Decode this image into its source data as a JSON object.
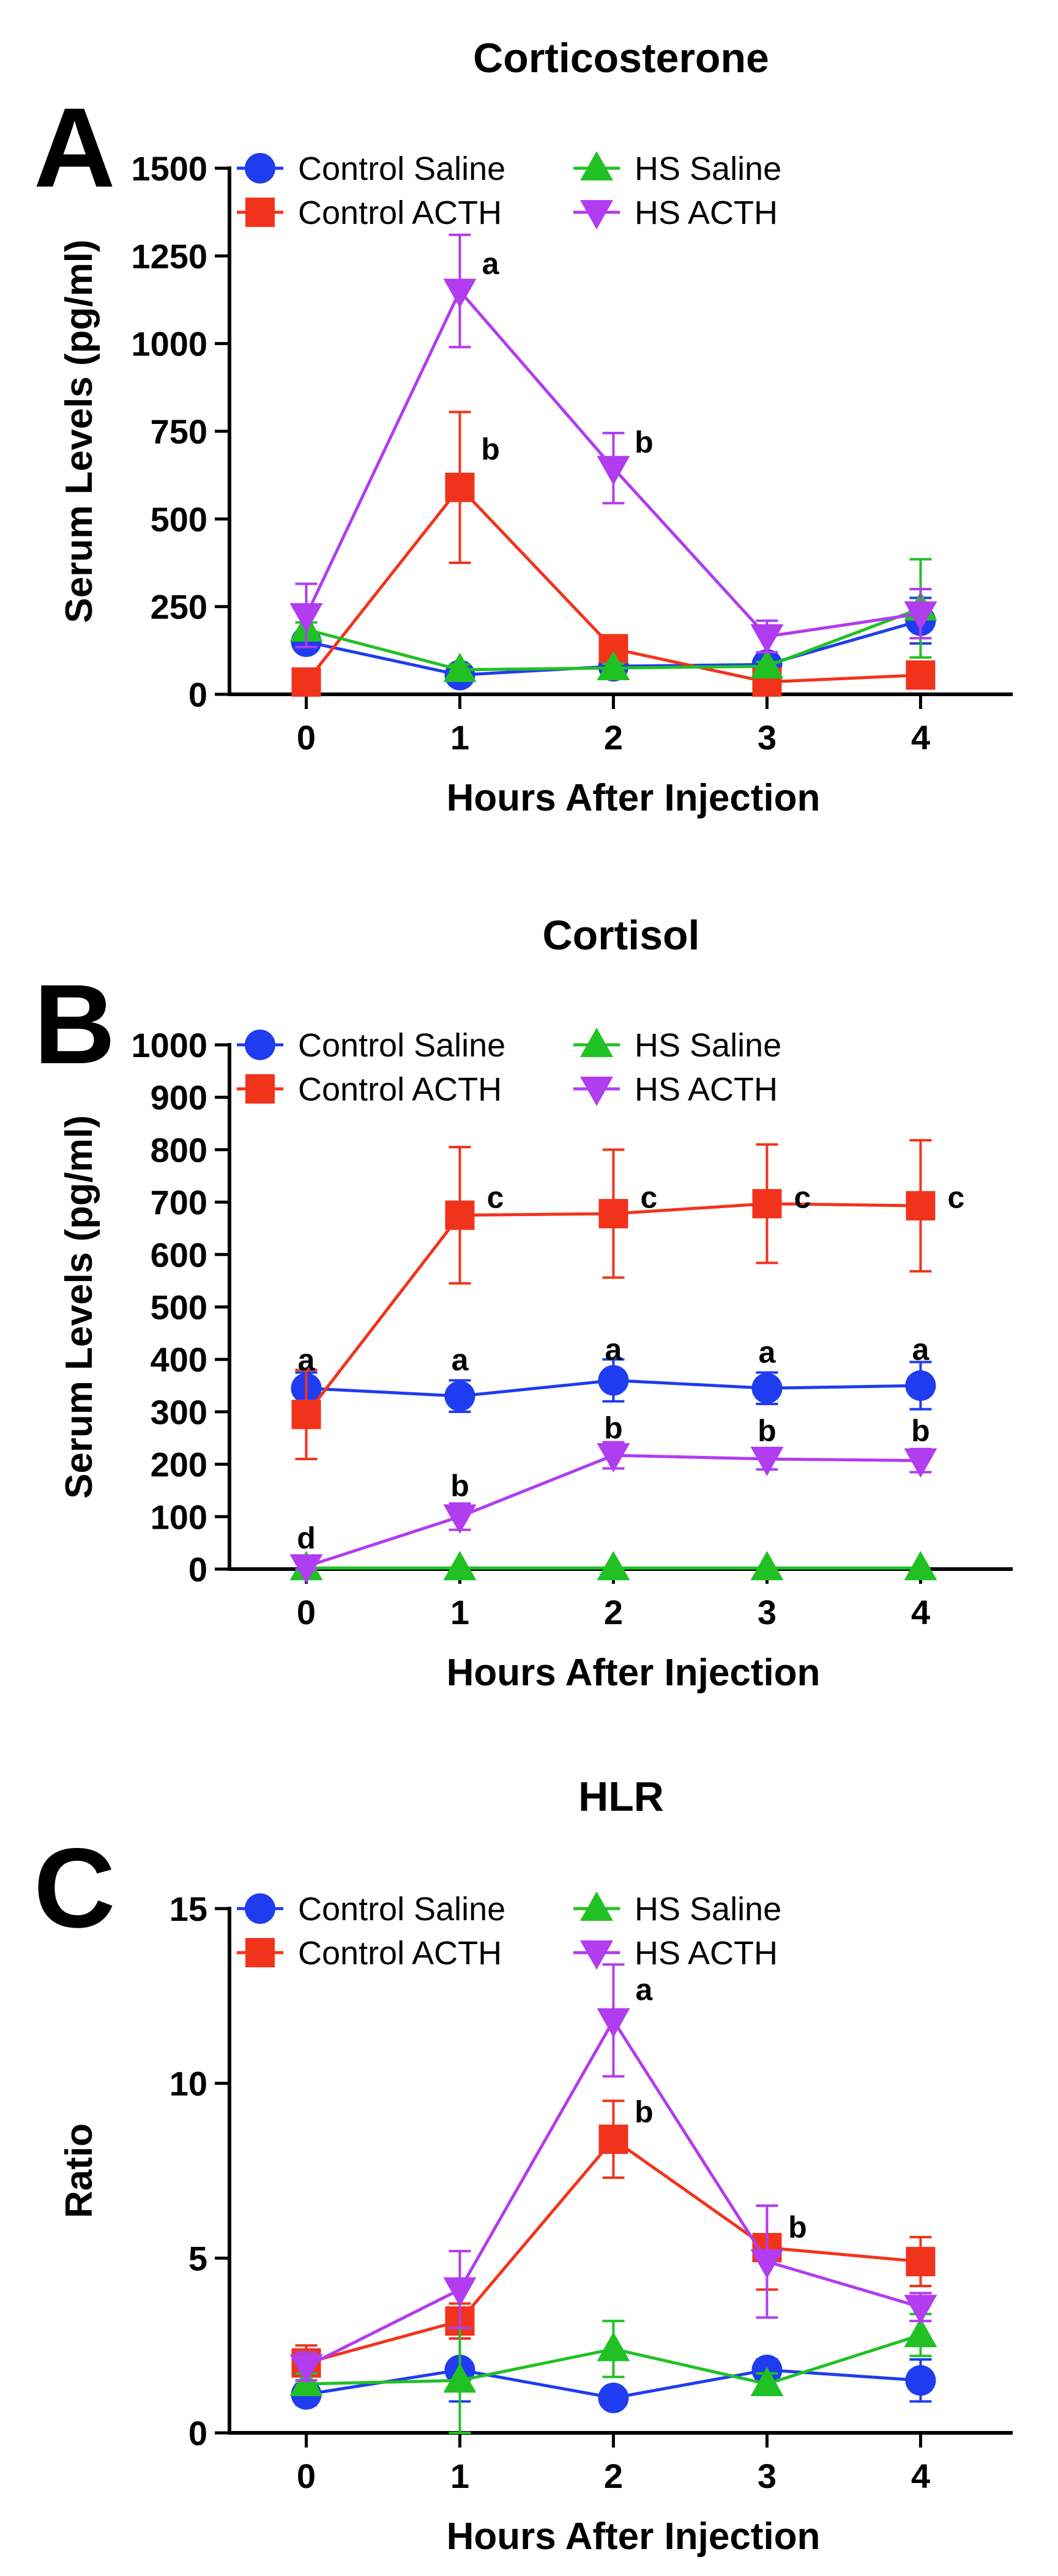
{
  "chart_data": [
    {
      "type": "line",
      "panel_label": "A",
      "title": "Corticosterone",
      "xlabel": "Hours After Injection",
      "ylabel": "Serum Levels (pg/ml)",
      "x": [
        0,
        1,
        2,
        3,
        4
      ],
      "xticks": [
        "0",
        "1",
        "2",
        "3",
        "4"
      ],
      "xlim": [
        -0.5,
        4.6
      ],
      "ylim": [
        0,
        1500
      ],
      "yticks": [
        0,
        250,
        500,
        750,
        1000,
        1250,
        1500
      ],
      "ytick_labels": [
        "0",
        "250",
        "500",
        "750",
        "1000",
        "1250",
        "1500"
      ],
      "legend": {
        "position": "top-left",
        "columns": 2
      },
      "series": [
        {
          "name": "Control Saline",
          "color": "#1f3cf0",
          "marker": "circle",
          "values": [
            150,
            55,
            80,
            85,
            210
          ],
          "errors": [
            25,
            15,
            15,
            15,
            65
          ]
        },
        {
          "name": "Control ACTH",
          "color": "#f2331c",
          "marker": "square",
          "values": [
            35,
            590,
            130,
            35,
            55
          ],
          "errors": [
            15,
            215,
            30,
            10,
            10
          ]
        },
        {
          "name": "HS Saline",
          "color": "#21c124",
          "marker": "triangle-up",
          "values": [
            185,
            70,
            75,
            80,
            245
          ],
          "errors": [
            20,
            15,
            12,
            12,
            140
          ]
        },
        {
          "name": "HS ACTH",
          "color": "#b13cf0",
          "marker": "triangle-down",
          "values": [
            225,
            1150,
            645,
            165,
            230
          ],
          "errors": [
            90,
            160,
            100,
            45,
            70
          ]
        }
      ],
      "annotations": [
        {
          "x": 1,
          "y": 1230,
          "text": "a"
        },
        {
          "x": 1,
          "y": 700,
          "text": "b"
        },
        {
          "x": 2,
          "y": 720,
          "text": "b"
        }
      ]
    },
    {
      "type": "line",
      "panel_label": "B",
      "title": "Cortisol",
      "xlabel": "Hours After Injection",
      "ylabel": "Serum Levels (pg/ml)",
      "x": [
        0,
        1,
        2,
        3,
        4
      ],
      "xticks": [
        "0",
        "1",
        "2",
        "3",
        "4"
      ],
      "xlim": [
        -0.5,
        4.6
      ],
      "ylim": [
        0,
        1000
      ],
      "yticks": [
        0,
        100,
        200,
        300,
        400,
        500,
        600,
        700,
        800,
        900,
        1000
      ],
      "ytick_labels": [
        "0",
        "100",
        "200",
        "300",
        "400",
        "500",
        "600",
        "700",
        "800",
        "900",
        "1000"
      ],
      "legend": {
        "position": "top-left",
        "columns": 2
      },
      "series": [
        {
          "name": "Control Saline",
          "color": "#1f3cf0",
          "marker": "circle",
          "values": [
            345,
            330,
            360,
            345,
            350
          ],
          "errors": [
            30,
            30,
            40,
            30,
            45
          ]
        },
        {
          "name": "Control ACTH",
          "color": "#f2331c",
          "marker": "square",
          "values": [
            295,
            675,
            678,
            697,
            693
          ],
          "errors": [
            85,
            130,
            122,
            113,
            125
          ]
        },
        {
          "name": "HS Saline",
          "color": "#21c124",
          "marker": "triangle-up",
          "values": [
            2,
            2,
            2,
            2,
            2
          ],
          "errors": [
            0,
            0,
            0,
            0,
            0
          ]
        },
        {
          "name": "HS ACTH",
          "color": "#b13cf0",
          "marker": "triangle-down",
          "values": [
            5,
            100,
            217,
            210,
            207
          ],
          "errors": [
            5,
            25,
            25,
            20,
            22
          ]
        }
      ],
      "annotations": [
        {
          "x": 0,
          "y": 400,
          "text": "a"
        },
        {
          "x": 1,
          "y": 400,
          "text": "a"
        },
        {
          "x": 2,
          "y": 420,
          "text": "a"
        },
        {
          "x": 3,
          "y": 415,
          "text": "a"
        },
        {
          "x": 4,
          "y": 420,
          "text": "a"
        },
        {
          "x": 1,
          "y": 710,
          "text": "c"
        },
        {
          "x": 2,
          "y": 710,
          "text": "c"
        },
        {
          "x": 3,
          "y": 710,
          "text": "c"
        },
        {
          "x": 4,
          "y": 710,
          "text": "c"
        },
        {
          "x": 1,
          "y": 160,
          "text": "b"
        },
        {
          "x": 2,
          "y": 270,
          "text": "b"
        },
        {
          "x": 3,
          "y": 265,
          "text": "b"
        },
        {
          "x": 4,
          "y": 265,
          "text": "b"
        },
        {
          "x": 0,
          "y": 60,
          "text": "d"
        }
      ]
    },
    {
      "type": "line",
      "panel_label": "C",
      "title": "HLR",
      "xlabel": "Hours After Injection",
      "ylabel": "Ratio",
      "x": [
        0,
        1,
        2,
        3,
        4
      ],
      "xticks": [
        "0",
        "1",
        "2",
        "3",
        "4"
      ],
      "xlim": [
        -0.5,
        4.6
      ],
      "ylim": [
        0,
        15
      ],
      "yticks": [
        0,
        5,
        10,
        15
      ],
      "ytick_labels": [
        "0",
        "5",
        "10",
        "15"
      ],
      "legend": {
        "position": "top-left",
        "columns": 2
      },
      "series": [
        {
          "name": "Control Saline",
          "color": "#1f3cf0",
          "marker": "circle",
          "values": [
            1.1,
            1.8,
            1.0,
            1.8,
            1.5
          ],
          "errors": [
            0.3,
            0.9,
            0.1,
            0.3,
            0.6
          ]
        },
        {
          "name": "Control ACTH",
          "color": "#f2331c",
          "marker": "square",
          "values": [
            2.0,
            3.2,
            8.4,
            5.3,
            4.9
          ],
          "errors": [
            0.5,
            0.5,
            1.1,
            1.2,
            0.7
          ]
        },
        {
          "name": "HS Saline",
          "color": "#21c124",
          "marker": "triangle-up",
          "values": [
            1.4,
            1.5,
            2.4,
            1.4,
            2.8
          ],
          "errors": [
            0.3,
            1.5,
            0.8,
            0.3,
            0.6
          ]
        },
        {
          "name": "HS ACTH",
          "color": "#b13cf0",
          "marker": "triangle-down",
          "values": [
            1.9,
            4.1,
            11.8,
            4.9,
            3.6
          ],
          "errors": [
            0.4,
            1.1,
            1.6,
            1.6,
            0.4
          ]
        }
      ],
      "annotations": [
        {
          "x": 2,
          "y": 12.7,
          "text": "a"
        },
        {
          "x": 2,
          "y": 9.2,
          "text": "b"
        },
        {
          "x": 3,
          "y": 5.9,
          "text": "b"
        }
      ]
    }
  ]
}
